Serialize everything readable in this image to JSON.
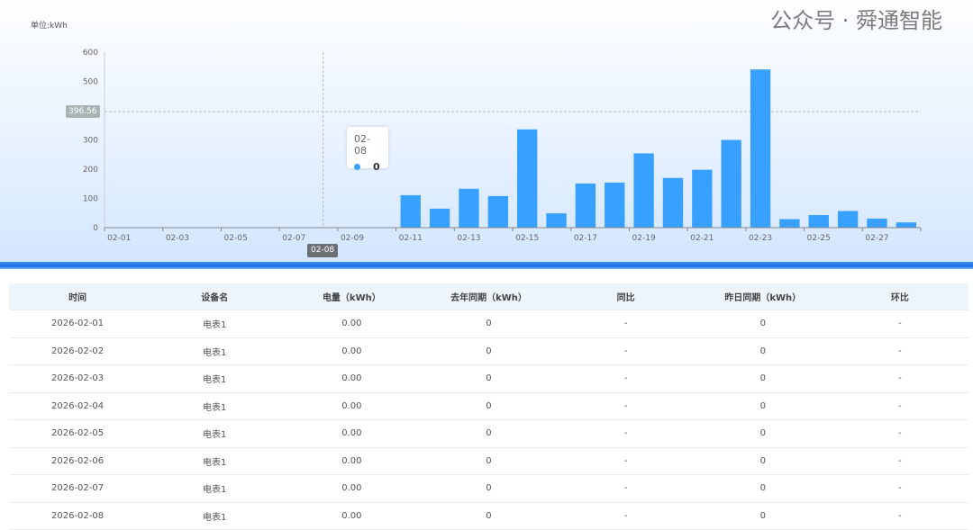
{
  "chart_data": {
    "type": "bar",
    "unit_label": "单位:kWh",
    "categories": [
      "02-01",
      "02-02",
      "02-03",
      "02-04",
      "02-05",
      "02-06",
      "02-07",
      "02-08",
      "02-09",
      "02-10",
      "02-11",
      "02-12",
      "02-13",
      "02-14",
      "02-15",
      "02-16",
      "02-17",
      "02-18",
      "02-19",
      "02-20",
      "02-21",
      "02-22",
      "02-23",
      "02-24",
      "02-25",
      "02-26",
      "02-27",
      "02-28"
    ],
    "x_tick_labels": [
      "02-01",
      "02-03",
      "02-05",
      "02-07",
      "02-09",
      "02-11",
      "02-13",
      "02-15",
      "02-17",
      "02-19",
      "02-21",
      "02-23",
      "02-25",
      "02-27"
    ],
    "values": [
      0,
      0,
      0,
      0,
      0,
      0,
      0,
      0,
      0,
      0,
      111,
      65,
      133,
      108,
      336,
      49,
      151,
      154,
      254,
      170,
      198,
      300,
      541,
      29,
      43,
      57,
      31,
      18
    ],
    "ylim": [
      0,
      600
    ],
    "yticks": [
      0,
      100,
      200,
      300,
      400,
      500,
      600
    ],
    "ytick_labels": [
      "0",
      "100",
      "200",
      "300",
      "",
      "500",
      "600"
    ],
    "bar_color": "#38a1ff",
    "pointer": {
      "x": "02-08",
      "y": "396.56"
    },
    "tooltip": {
      "title": "02-08",
      "value": "0"
    }
  },
  "table": {
    "headers": [
      "时间",
      "设备名",
      "电量（kWh）",
      "去年同期（kWh）",
      "同比",
      "昨日同期（kWh）",
      "环比"
    ],
    "rows": [
      [
        "2026-02-01",
        "电表1",
        "0.00",
        "0",
        "-",
        "0",
        "-"
      ],
      [
        "2026-02-02",
        "电表1",
        "0.00",
        "0",
        "-",
        "0",
        "-"
      ],
      [
        "2026-02-03",
        "电表1",
        "0.00",
        "0",
        "-",
        "0",
        "-"
      ],
      [
        "2026-02-04",
        "电表1",
        "0.00",
        "0",
        "-",
        "0",
        "-"
      ],
      [
        "2026-02-05",
        "电表1",
        "0.00",
        "0",
        "-",
        "0",
        "-"
      ],
      [
        "2026-02-06",
        "电表1",
        "0.00",
        "0",
        "-",
        "0",
        "-"
      ],
      [
        "2026-02-07",
        "电表1",
        "0.00",
        "0",
        "-",
        "0",
        "-"
      ],
      [
        "2026-02-08",
        "电表1",
        "0.00",
        "0",
        "-",
        "0",
        "-"
      ]
    ]
  },
  "watermark": "公众号 · 舜通智能"
}
